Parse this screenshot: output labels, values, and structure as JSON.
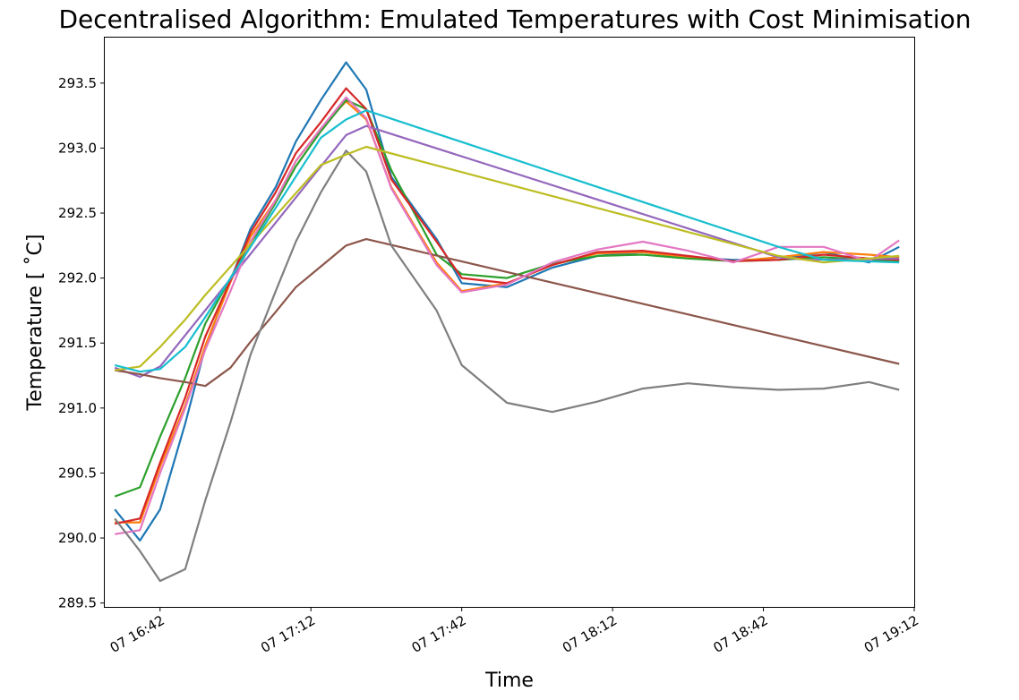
{
  "chart_data": {
    "type": "line",
    "title": "Decentralised Algorithm: Emulated Temperatures with Cost Minimisation",
    "xlabel": "Time",
    "ylabel": "Temperature [$^\\circ$C]",
    "ylabel_display": "Temperature [ ˚C]",
    "ylim": [
      289.47,
      293.85
    ],
    "xlim": [
      "07 16:31",
      "07 19:12"
    ],
    "grid": false,
    "legend": "none",
    "xticks": [
      {
        "t": "07 16:42",
        "label": "07 16:42"
      },
      {
        "t": "07 17:12",
        "label": "07 17:12"
      },
      {
        "t": "07 17:42",
        "label": "07 17:42"
      },
      {
        "t": "07 18:12",
        "label": "07 18:12"
      },
      {
        "t": "07 18:42",
        "label": "07 18:42"
      },
      {
        "t": "07 19:12",
        "label": "07 19:12"
      }
    ],
    "yticks": [
      {
        "v": 289.5,
        "label": "289.5"
      },
      {
        "v": 290.0,
        "label": "290.0"
      },
      {
        "v": 290.5,
        "label": "290.5"
      },
      {
        "v": 291.0,
        "label": "291.0"
      },
      {
        "v": 291.5,
        "label": "291.5"
      },
      {
        "v": 292.0,
        "label": "292.0"
      },
      {
        "v": 292.5,
        "label": "292.5"
      },
      {
        "v": 293.0,
        "label": "293.0"
      },
      {
        "v": 293.5,
        "label": "293.5"
      }
    ],
    "series": [
      {
        "color": "#1f77b4",
        "x": [
          "07 16:33",
          "07 16:38",
          "07 16:42",
          "07 16:47",
          "07 16:51",
          "07 16:56",
          "07 17:00",
          "07 17:05",
          "07 17:09",
          "07 17:14",
          "07 17:19",
          "07 17:23",
          "07 17:28",
          "07 17:37",
          "07 17:42",
          "07 17:51",
          "07 18:00",
          "07 18:09",
          "07 18:18",
          "07 18:27",
          "07 18:36",
          "07 18:45",
          "07 18:54",
          "07 19:03",
          "07 19:09"
        ],
        "y": [
          290.22,
          289.98,
          290.22,
          290.88,
          291.47,
          291.98,
          292.38,
          292.7,
          293.05,
          293.37,
          293.66,
          293.45,
          292.78,
          292.3,
          291.96,
          291.93,
          292.08,
          292.17,
          292.2,
          292.16,
          292.14,
          292.14,
          292.2,
          292.12,
          292.24
        ]
      },
      {
        "color": "#ff7f0e",
        "x": [
          "07 16:33",
          "07 16:38",
          "07 16:42",
          "07 16:47",
          "07 16:51",
          "07 16:56",
          "07 17:00",
          "07 17:05",
          "07 17:09",
          "07 17:14",
          "07 17:19",
          "07 17:23",
          "07 17:28",
          "07 17:37",
          "07 17:42",
          "07 17:51",
          "07 18:00",
          "07 18:09",
          "07 18:18",
          "07 18:27",
          "07 18:36",
          "07 18:45",
          "07 18:54",
          "07 19:03",
          "07 19:09"
        ],
        "y": [
          290.12,
          290.12,
          290.55,
          291.02,
          291.48,
          291.97,
          292.32,
          292.6,
          292.9,
          293.15,
          293.36,
          293.22,
          292.7,
          292.12,
          291.9,
          291.96,
          292.1,
          292.19,
          292.2,
          292.16,
          292.13,
          292.16,
          292.2,
          292.18,
          292.16
        ]
      },
      {
        "color": "#2ca02c",
        "x": [
          "07 16:33",
          "07 16:38",
          "07 16:42",
          "07 16:47",
          "07 16:51",
          "07 16:56",
          "07 17:00",
          "07 17:05",
          "07 17:09",
          "07 17:14",
          "07 17:19",
          "07 17:23",
          "07 17:28",
          "07 17:37",
          "07 17:42",
          "07 17:51",
          "07 18:00",
          "07 18:09",
          "07 18:18",
          "07 18:27",
          "07 18:36",
          "07 18:45",
          "07 18:54",
          "07 19:03",
          "07 19:09"
        ],
        "y": [
          290.32,
          290.39,
          290.78,
          291.23,
          291.65,
          292.0,
          292.26,
          292.58,
          292.86,
          293.13,
          293.37,
          293.3,
          292.83,
          292.18,
          292.03,
          292.0,
          292.11,
          292.17,
          292.18,
          292.15,
          292.13,
          292.14,
          292.16,
          292.14,
          292.13
        ]
      },
      {
        "color": "#d62728",
        "x": [
          "07 16:33",
          "07 16:38",
          "07 16:42",
          "07 16:47",
          "07 16:51",
          "07 16:56",
          "07 17:00",
          "07 17:05",
          "07 17:09",
          "07 17:14",
          "07 17:19",
          "07 17:23",
          "07 17:28",
          "07 17:37",
          "07 17:42",
          "07 17:51",
          "07 18:00",
          "07 18:09",
          "07 18:18",
          "07 18:27",
          "07 18:36",
          "07 18:45",
          "07 18:54",
          "07 19:03",
          "07 19:09"
        ],
        "y": [
          290.11,
          290.15,
          290.58,
          291.08,
          291.55,
          291.98,
          292.35,
          292.66,
          292.96,
          293.2,
          293.46,
          293.3,
          292.76,
          292.28,
          292.0,
          291.96,
          292.1,
          292.2,
          292.21,
          292.17,
          292.13,
          292.14,
          292.18,
          292.15,
          292.14
        ]
      },
      {
        "color": "#9467bd",
        "x": [
          "07 16:33",
          "07 16:38",
          "07 16:42",
          "07 17:19",
          "07 17:23",
          "07 18:45",
          "07 18:51",
          "07 19:09"
        ],
        "y": [
          291.31,
          291.24,
          291.32,
          293.1,
          293.17,
          292.16,
          292.14,
          292.15
        ]
      },
      {
        "color": "#8c564b",
        "x": [
          "07 16:33",
          "07 16:38",
          "07 16:42",
          "07 16:47",
          "07 16:51",
          "07 16:56",
          "07 17:00",
          "07 17:05",
          "07 17:09",
          "07 17:14",
          "07 17:19",
          "07 17:23",
          "07 19:09"
        ],
        "y": [
          291.29,
          291.26,
          291.23,
          291.2,
          291.17,
          291.31,
          291.51,
          291.74,
          291.93,
          292.09,
          292.25,
          292.3,
          291.34
        ]
      },
      {
        "color": "#e377c2",
        "x": [
          "07 16:33",
          "07 16:38",
          "07 16:42",
          "07 16:47",
          "07 16:51",
          "07 16:56",
          "07 17:00",
          "07 17:05",
          "07 17:09",
          "07 17:14",
          "07 17:19",
          "07 17:23",
          "07 17:28",
          "07 17:37",
          "07 17:42",
          "07 17:51",
          "07 18:00",
          "07 18:09",
          "07 18:18",
          "07 18:27",
          "07 18:36",
          "07 18:45",
          "07 18:54",
          "07 19:03",
          "07 19:09"
        ],
        "y": [
          290.03,
          290.06,
          290.5,
          291.0,
          291.45,
          291.9,
          292.28,
          292.6,
          292.9,
          293.15,
          293.39,
          293.23,
          292.69,
          292.1,
          291.89,
          291.95,
          292.12,
          292.22,
          292.28,
          292.21,
          292.12,
          292.24,
          292.24,
          292.13,
          292.29
        ]
      },
      {
        "color": "#7f7f7f",
        "x": [
          "07 16:33",
          "07 16:38",
          "07 16:42",
          "07 16:47",
          "07 16:51",
          "07 16:56",
          "07 17:00",
          "07 17:05",
          "07 17:09",
          "07 17:14",
          "07 17:19",
          "07 17:23",
          "07 17:28",
          "07 17:37",
          "07 17:42",
          "07 17:51",
          "07 18:00",
          "07 18:09",
          "07 18:18",
          "07 18:27",
          "07 18:36",
          "07 18:45",
          "07 18:54",
          "07 19:03",
          "07 19:09"
        ],
        "y": [
          290.15,
          289.9,
          289.67,
          289.76,
          290.29,
          290.89,
          291.41,
          291.9,
          292.28,
          292.66,
          292.98,
          292.82,
          292.25,
          291.75,
          291.33,
          291.04,
          290.97,
          291.05,
          291.15,
          291.19,
          291.16,
          291.14,
          291.15,
          291.2,
          291.14
        ]
      },
      {
        "color": "#bcbd22",
        "x": [
          "07 16:33",
          "07 16:38",
          "07 16:42",
          "07 16:47",
          "07 16:51",
          "07 17:14",
          "07 17:19",
          "07 17:23",
          "07 18:45",
          "07 18:54",
          "07 19:09"
        ],
        "y": [
          291.29,
          291.32,
          291.47,
          291.68,
          291.87,
          292.87,
          292.95,
          293.01,
          292.17,
          292.12,
          292.17
        ]
      },
      {
        "color": "#17becf",
        "x": [
          "07 16:33",
          "07 16:38",
          "07 16:42",
          "07 16:47",
          "07 16:51",
          "07 17:14",
          "07 17:19",
          "07 17:23",
          "07 18:45",
          "07 18:54",
          "07 19:09"
        ],
        "y": [
          291.33,
          291.28,
          291.3,
          291.47,
          291.7,
          293.08,
          293.22,
          293.29,
          292.24,
          292.14,
          292.12
        ]
      }
    ]
  }
}
